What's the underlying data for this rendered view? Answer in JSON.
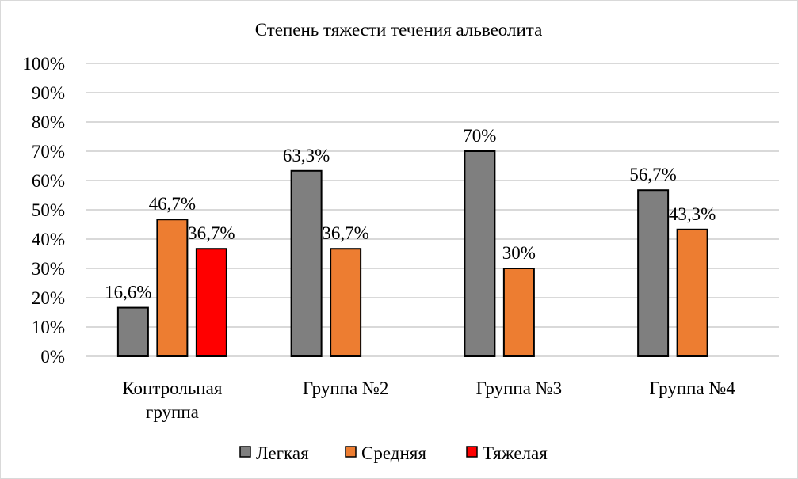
{
  "chart_data": {
    "type": "bar",
    "title": "Степень тяжести течения альвеолита",
    "xlabel": "",
    "ylabel": "",
    "ylim": [
      0,
      100
    ],
    "yticks": [
      "0%",
      "10%",
      "20%",
      "30%",
      "40%",
      "50%",
      "60%",
      "70%",
      "80%",
      "90%",
      "100%"
    ],
    "grid": true,
    "legend_position": "bottom",
    "categories": [
      [
        "Контрольная",
        "группа"
      ],
      [
        "Группа №2"
      ],
      [
        "Группа №3"
      ],
      [
        "Группа №4"
      ]
    ],
    "series": [
      {
        "name": "Легкая",
        "color": "#7f7f7f",
        "values": [
          16.6,
          63.3,
          70,
          56.7
        ],
        "labels": [
          "16,6%",
          "63,3%",
          "70%",
          "56,7%"
        ]
      },
      {
        "name": "Средняя",
        "color": "#ed7d31",
        "values": [
          46.7,
          36.7,
          30,
          43.3
        ],
        "labels": [
          "46,7%",
          "36,7%",
          "30%",
          "43,3%"
        ]
      },
      {
        "name": "Тяжелая",
        "color": "#ff0000",
        "values": [
          36.7,
          null,
          null,
          null
        ],
        "labels": [
          "36,7%",
          null,
          null,
          null
        ]
      }
    ]
  }
}
